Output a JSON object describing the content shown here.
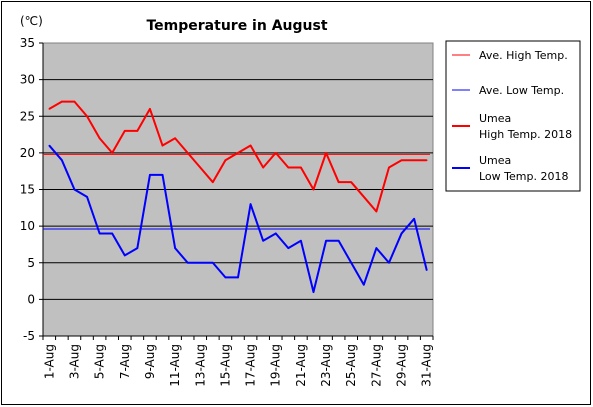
{
  "chart_data": {
    "type": "line",
    "title": "Temperature in August",
    "unit_label": "(℃)",
    "ylim": [
      -5,
      35
    ],
    "yticks": [
      -5,
      0,
      5,
      10,
      15,
      20,
      25,
      30,
      35
    ],
    "categories": [
      "1-Aug",
      "2-Aug",
      "3-Aug",
      "4-Aug",
      "5-Aug",
      "6-Aug",
      "7-Aug",
      "8-Aug",
      "9-Aug",
      "10-Aug",
      "11-Aug",
      "12-Aug",
      "13-Aug",
      "14-Aug",
      "15-Aug",
      "16-Aug",
      "17-Aug",
      "18-Aug",
      "19-Aug",
      "20-Aug",
      "21-Aug",
      "22-Aug",
      "23-Aug",
      "24-Aug",
      "25-Aug",
      "26-Aug",
      "27-Aug",
      "28-Aug",
      "29-Aug",
      "30-Aug",
      "31-Aug"
    ],
    "xtick_labels": [
      "1-Aug",
      "3-Aug",
      "5-Aug",
      "7-Aug",
      "9-Aug",
      "11-Aug",
      "13-Aug",
      "15-Aug",
      "17-Aug",
      "19-Aug",
      "21-Aug",
      "23-Aug",
      "25-Aug",
      "27-Aug",
      "29-Aug",
      "31-Aug"
    ],
    "plot_bg": "#c0c0c0",
    "grid": true,
    "legend_position": "right",
    "series": [
      {
        "name": "Ave. High Temp.",
        "kind": "reference",
        "color": "#ff0000",
        "value": 19.8
      },
      {
        "name": "Ave. Low Temp.",
        "kind": "reference",
        "color": "#0000ff",
        "value": 9.6
      },
      {
        "name": "Umea\nHigh Temp. 2018",
        "kind": "line",
        "color": "#ff0000",
        "values": [
          26,
          27,
          27,
          25,
          22,
          20,
          23,
          23,
          26,
          21,
          22,
          20,
          18,
          16,
          19,
          20,
          21,
          18,
          20,
          18,
          18,
          15,
          20,
          16,
          16,
          14,
          12,
          18,
          19,
          19,
          19
        ]
      },
      {
        "name": "Umea\nLow Temp. 2018",
        "kind": "line",
        "color": "#0000ff",
        "values": [
          21,
          19,
          15,
          14,
          9,
          9,
          6,
          7,
          17,
          17,
          7,
          5,
          5,
          5,
          3,
          3,
          13,
          8,
          9,
          7,
          8,
          1,
          8,
          8,
          5,
          2,
          7,
          5,
          9,
          11,
          4
        ]
      }
    ]
  }
}
